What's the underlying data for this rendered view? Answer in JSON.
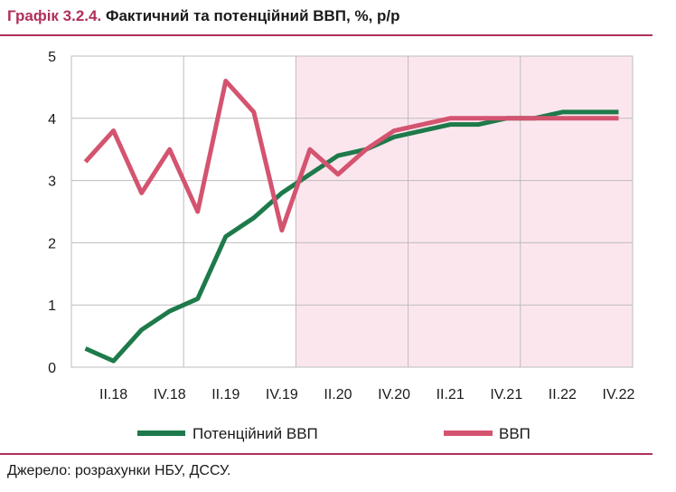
{
  "title": {
    "number": "Графік 3.2.4.",
    "text": "Фактичний та потенційний ВВП, %, р/р"
  },
  "source": "Джерело: розрахунки НБУ, ДССУ.",
  "colors": {
    "accent": "#b0305a",
    "potential": "#1e7a4a",
    "gdp": "#d45470",
    "forecast_bg": "#fce6ee",
    "grid": "#bdbdbd"
  },
  "chart_data": {
    "type": "line",
    "x": [
      "I.18",
      "II.18",
      "III.18",
      "IV.18",
      "I.19",
      "II.19",
      "III.19",
      "IV.19",
      "I.20",
      "II.20",
      "III.20",
      "IV.20",
      "I.21",
      "II.21",
      "III.21",
      "IV.21",
      "I.22",
      "II.22",
      "III.22",
      "IV.22"
    ],
    "x_tick_labels": [
      "II.18",
      "IV.18",
      "II.19",
      "IV.19",
      "II.20",
      "IV.20",
      "II.21",
      "IV.21",
      "II.22",
      "IV.22"
    ],
    "ylim": [
      0,
      5
    ],
    "yticks": [
      0,
      1,
      2,
      3,
      4,
      5
    ],
    "grid": true,
    "forecast_shading": {
      "from": "IV.19",
      "to": "IV.22"
    },
    "legend_position": "bottom",
    "series": [
      {
        "name": "Потенційний ВВП",
        "color": "#1e7a4a",
        "values": [
          0.3,
          0.1,
          0.6,
          0.9,
          1.1,
          2.1,
          2.4,
          2.8,
          3.1,
          3.4,
          3.5,
          3.7,
          3.8,
          3.9,
          3.9,
          4.0,
          4.0,
          4.1,
          4.1,
          4.1
        ]
      },
      {
        "name": "ВВП",
        "color": "#d45470",
        "values": [
          3.3,
          3.8,
          2.8,
          3.5,
          2.5,
          4.6,
          4.1,
          2.2,
          3.5,
          3.1,
          3.5,
          3.8,
          3.9,
          4.0,
          4.0,
          4.0,
          4.0,
          4.0,
          4.0,
          4.0
        ]
      }
    ]
  }
}
